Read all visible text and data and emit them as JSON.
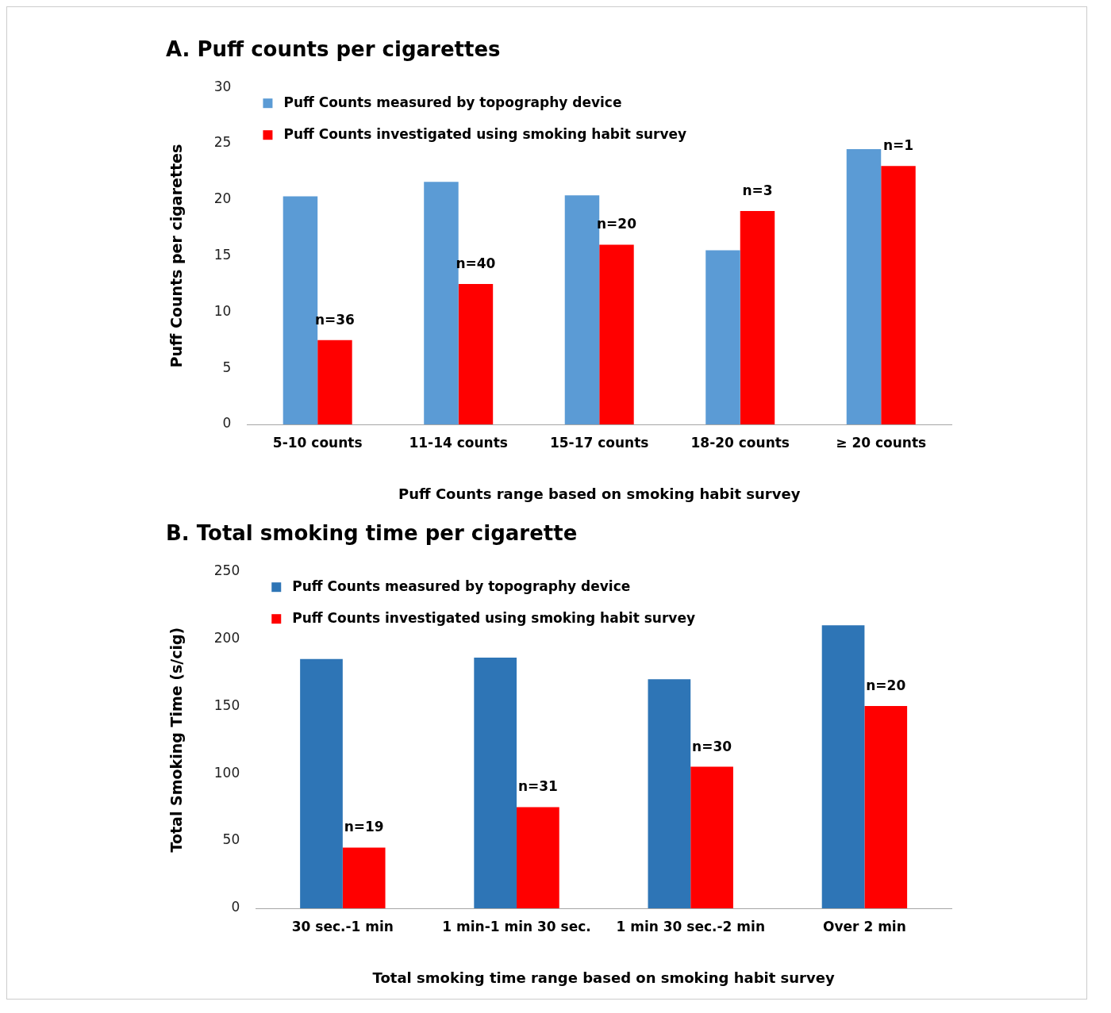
{
  "chart_data": [
    {
      "type": "bar",
      "title": "A. Puff counts per cigarettes",
      "xlabel": "Puff Counts range based on smoking habit survey",
      "ylabel": "Puff Counts per cigarettes",
      "categories": [
        "5-10 counts",
        "11-14 counts",
        "15-17 counts",
        "18-20 counts",
        "≥ 20 counts"
      ],
      "series": [
        {
          "name": "Puff Counts measured by topography device",
          "color": "#5b9bd5",
          "values": [
            20.3,
            21.6,
            20.4,
            15.5,
            24.5
          ]
        },
        {
          "name": "Puff Counts investigated using smoking habit survey",
          "color": "#ff0000",
          "values": [
            7.5,
            12.5,
            16.0,
            19.0,
            23.0
          ]
        }
      ],
      "ylim": [
        0,
        30
      ],
      "yticks": [
        0,
        5,
        10,
        15,
        20,
        25,
        30
      ],
      "grid": false,
      "legend": "top left",
      "annotations": [
        {
          "text": "n=36",
          "x": "5-10 counts",
          "y": 7.5
        },
        {
          "text": "n=40",
          "x": "11-14 counts",
          "y": 12.5
        },
        {
          "text": "n=20",
          "x": "15-17 counts",
          "y": 16.0
        },
        {
          "text": "n=3",
          "x": "18-20 counts",
          "y": 19.0
        },
        {
          "text": "n=1",
          "x": "≥ 20 counts",
          "y": 23.0
        }
      ]
    },
    {
      "type": "bar",
      "title": "B. Total smoking time per cigarette",
      "xlabel": "Total smoking time range based on smoking habit survey",
      "ylabel": "Total Smoking Time (s/cig)",
      "categories": [
        "30 sec.-1 min",
        "1 min-1 min 30 sec.",
        "1 min 30 sec.-2 min",
        "Over 2 min"
      ],
      "series": [
        {
          "name": "Puff Counts measured by topography device",
          "color": "#2e75b6",
          "values": [
            185,
            186,
            170,
            210
          ]
        },
        {
          "name": "Puff Counts investigated using smoking habit survey",
          "color": "#ff0000",
          "values": [
            45,
            75,
            105,
            150
          ]
        }
      ],
      "ylim": [
        0,
        250
      ],
      "yticks": [
        0,
        50,
        100,
        150,
        200,
        250
      ],
      "grid": false,
      "legend": "top left",
      "annotations": [
        {
          "text": "n=19",
          "x": "30 sec.-1 min",
          "y": 45
        },
        {
          "text": "n=31",
          "x": "1 min-1 min 30 sec.",
          "y": 75
        },
        {
          "text": "n=30",
          "x": "1 min 30 sec.-2 min",
          "y": 105
        },
        {
          "text": "n=20",
          "x": "Over 2 min",
          "y": 150
        }
      ]
    }
  ]
}
